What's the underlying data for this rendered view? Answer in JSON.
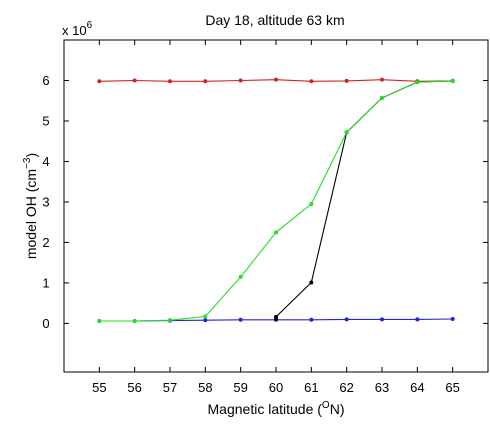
{
  "chart_data": {
    "type": "line",
    "title": "Day 18, altitude 63 km",
    "xlabel": {
      "main": "Magnetic latitude (",
      "sup": "O",
      "tail": "N)"
    },
    "ylabel": {
      "main": "model OH (cm",
      "sup": "−3",
      "tail": ")"
    },
    "y_multiplier": {
      "base": "x 10",
      "exp": "6"
    },
    "xlim": [
      54,
      66
    ],
    "ylim": [
      -1.2,
      7
    ],
    "x_ticks": [
      55,
      56,
      57,
      58,
      59,
      60,
      61,
      62,
      63,
      64,
      65
    ],
    "y_ticks": [
      0,
      1,
      2,
      3,
      4,
      5,
      6
    ],
    "grid": false,
    "series": [
      {
        "color": "#d62020",
        "x": [
          55,
          56,
          57,
          58,
          59,
          60,
          61,
          62,
          63,
          64,
          65
        ],
        "y": [
          5.98,
          6.0,
          5.98,
          5.98,
          6.0,
          6.02,
          5.98,
          5.99,
          6.02,
          5.98,
          5.99
        ]
      },
      {
        "color": "#2323d8",
        "x": [
          55,
          56,
          57,
          58,
          59,
          60,
          61,
          62,
          63,
          64,
          65
        ],
        "y": [
          0.06,
          0.06,
          0.07,
          0.08,
          0.09,
          0.09,
          0.09,
          0.1,
          0.1,
          0.1,
          0.11
        ]
      },
      {
        "color": "#000000",
        "x": [
          60,
          60,
          61,
          62,
          63,
          64,
          65
        ],
        "y": [
          0.1,
          0.16,
          1.01,
          4.72,
          5.57,
          5.96,
          5.99
        ]
      },
      {
        "color": "#22e022",
        "x": [
          55,
          56,
          57,
          58,
          59,
          60,
          61,
          62,
          63,
          64,
          65
        ],
        "y": [
          0.06,
          0.06,
          0.08,
          0.17,
          1.15,
          2.25,
          2.95,
          4.72,
          5.57,
          5.96,
          5.99
        ]
      }
    ]
  }
}
